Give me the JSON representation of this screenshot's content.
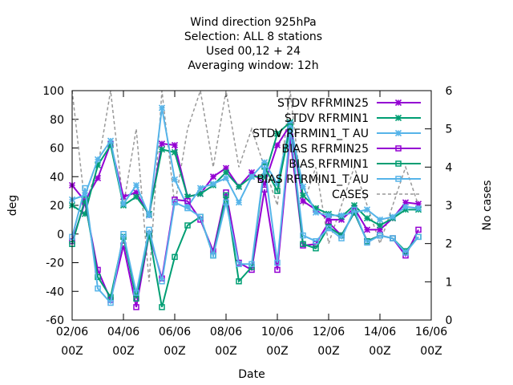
{
  "chart_data": {
    "type": "line",
    "title_lines": [
      "Wind direction 925hPa",
      "Selection: ALL      8 stations",
      "Used  00,12  + 24",
      "Averaging window: 12h"
    ],
    "xlabel": "Date",
    "ylabel": "deg",
    "y2label": "No cases",
    "ylim": [
      -60,
      100
    ],
    "y2lim": [
      0,
      6
    ],
    "xlim": [
      0,
      28
    ],
    "yticks": [
      -60,
      -40,
      -20,
      0,
      20,
      40,
      60,
      80,
      100
    ],
    "y2ticks": [
      0,
      1,
      2,
      3,
      4,
      5,
      6
    ],
    "xticks": [
      {
        "x": 0,
        "l1": "02/06",
        "l2": "00Z"
      },
      {
        "x": 4,
        "l1": "04/06",
        "l2": "00Z"
      },
      {
        "x": 8,
        "l1": "06/06",
        "l2": "00Z"
      },
      {
        "x": 12,
        "l1": "08/06",
        "l2": "00Z"
      },
      {
        "x": 16,
        "l1": "10/06",
        "l2": "00Z"
      },
      {
        "x": 20,
        "l1": "12/06",
        "l2": "00Z"
      },
      {
        "x": 24,
        "l1": "14/06",
        "l2": "00Z"
      },
      {
        "x": 28,
        "l1": "16/06",
        "l2": "00Z"
      }
    ],
    "x": [
      0,
      1,
      2,
      3,
      4,
      5,
      6,
      7,
      8,
      9,
      10,
      11,
      12,
      13,
      14,
      15,
      16,
      17,
      18,
      19,
      20,
      21,
      22,
      23,
      24,
      25,
      26,
      27
    ],
    "series": [
      {
        "name": "STDV RFRMIN25",
        "color": "#9400d3",
        "marker": "star",
        "axis": "y",
        "values": [
          34,
          23,
          39,
          63,
          26,
          29,
          13,
          63,
          62,
          26,
          28,
          40,
          46,
          33,
          43,
          35,
          62,
          76,
          23,
          17,
          10,
          10,
          18,
          3,
          3,
          11,
          22,
          21
        ]
      },
      {
        "name": "STDV RFRMIN1",
        "color": "#009e73",
        "marker": "star",
        "axis": "y",
        "values": [
          20,
          14,
          48,
          62,
          20,
          26,
          14,
          59,
          57,
          26,
          28,
          34,
          43,
          33,
          40,
          40,
          70,
          78,
          27,
          18,
          14,
          12,
          20,
          11,
          6,
          11,
          17,
          17
        ]
      },
      {
        "name": "STDV RFRMIN1_T AU",
        "color": "#56b4e9",
        "marker": "star",
        "axis": "y",
        "values": [
          24,
          27,
          52,
          65,
          21,
          34,
          13,
          88,
          38,
          19,
          32,
          35,
          39,
          22,
          40,
          50,
          35,
          77,
          33,
          15,
          13,
          13,
          15,
          17,
          10,
          12,
          19,
          18
        ]
      },
      {
        "name": "BIAS RFRMIN25",
        "color": "#9400d3",
        "marker": "square",
        "axis": "y",
        "values": [
          -5,
          22,
          -25,
          -46,
          -8,
          -51,
          0,
          -31,
          24,
          23,
          10,
          -12,
          29,
          -20,
          -25,
          31,
          -25,
          68,
          -8,
          -7,
          8,
          -1,
          15,
          -5,
          -1,
          -3,
          -15,
          3
        ]
      },
      {
        "name": "BIAS RFRMIN1",
        "color": "#009e73",
        "marker": "square",
        "axis": "y",
        "values": [
          -7,
          24,
          -30,
          -44,
          -2,
          -45,
          0,
          -51,
          -16,
          6,
          12,
          -15,
          27,
          -33,
          -23,
          47,
          30,
          75,
          -7,
          -10,
          5,
          -1,
          15,
          -5,
          -1,
          -3,
          -12,
          -2
        ]
      },
      {
        "name": "BIAS RFRMIN1_T AU",
        "color": "#56b4e9",
        "marker": "square",
        "axis": "y",
        "values": [
          -2,
          32,
          -38,
          -48,
          0,
          -41,
          3,
          -33,
          22,
          18,
          12,
          -15,
          22,
          -21,
          -21,
          48,
          -20,
          73,
          -1,
          -5,
          4,
          -3,
          17,
          -6,
          -1,
          -3,
          -13,
          -2
        ]
      },
      {
        "name": "CASES",
        "color": "#999999",
        "marker": "none",
        "dash": true,
        "axis": "y2",
        "values": [
          6,
          3,
          4,
          6,
          3,
          5,
          1,
          6,
          3,
          5,
          6,
          4,
          6,
          4,
          5,
          4,
          3,
          6,
          3,
          4,
          2,
          3,
          4,
          3,
          2,
          3,
          4,
          3
        ]
      }
    ],
    "legend": {
      "position": "top-right",
      "entries": [
        "STDV RFRMIN25",
        "STDV RFRMIN1",
        "STDV RFRMIN1_T AU",
        "BIAS RFRMIN25",
        "BIAS RFRMIN1",
        "BIAS RFRMIN1_T AU",
        "CASES"
      ]
    },
    "grid": false
  }
}
